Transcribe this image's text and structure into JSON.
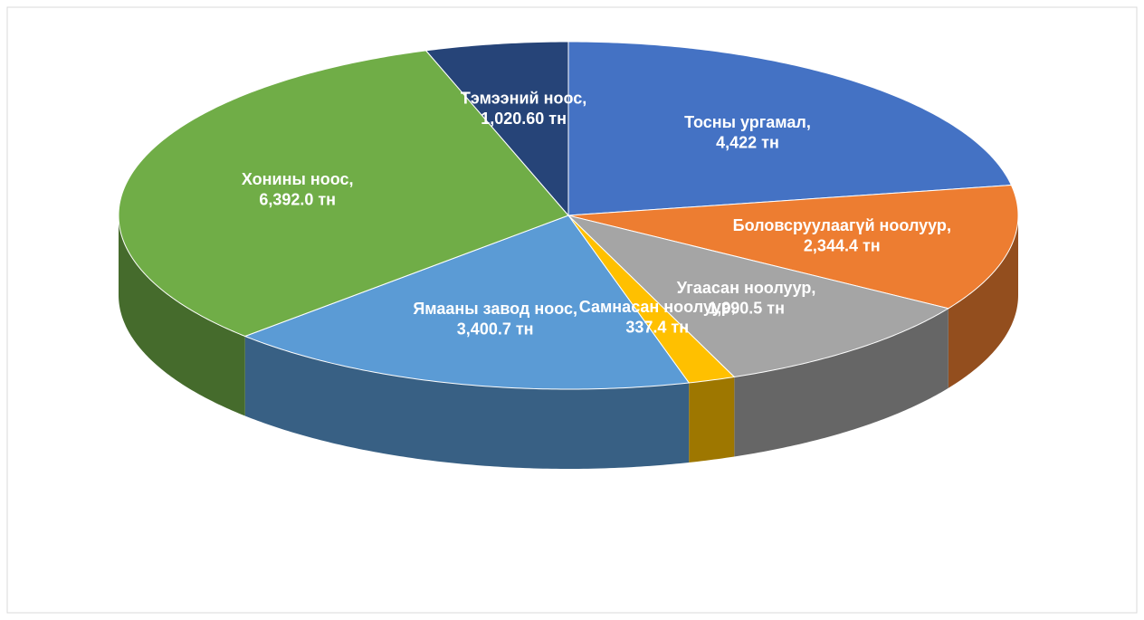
{
  "chart_data": {
    "type": "pie",
    "categories": [
      "Тосны ургамал",
      "Боловсруулаагүй ноолуур",
      "Угаасан ноолуур",
      "Самнасан ноолуур",
      "Ямааны завод ноос",
      "Хонины ноос",
      "Тэмээний ноос"
    ],
    "values": [
      4422,
      2344.4,
      1990.5,
      337.4,
      3400.7,
      6392.0,
      1020.6
    ],
    "value_labels": [
      "4,422 тн",
      "2,344.4 тн",
      "1,990.5 тн",
      "337.4 тн",
      "3,400.7 тн",
      "6,392.0 тн",
      "1,020.60 тн"
    ],
    "label_separator": ",",
    "colors": [
      "#4472c4",
      "#ed7d31",
      "#a5a5a5",
      "#ffc000",
      "#5b9bd5",
      "#70ad47",
      "#264478"
    ],
    "three_d": true
  }
}
